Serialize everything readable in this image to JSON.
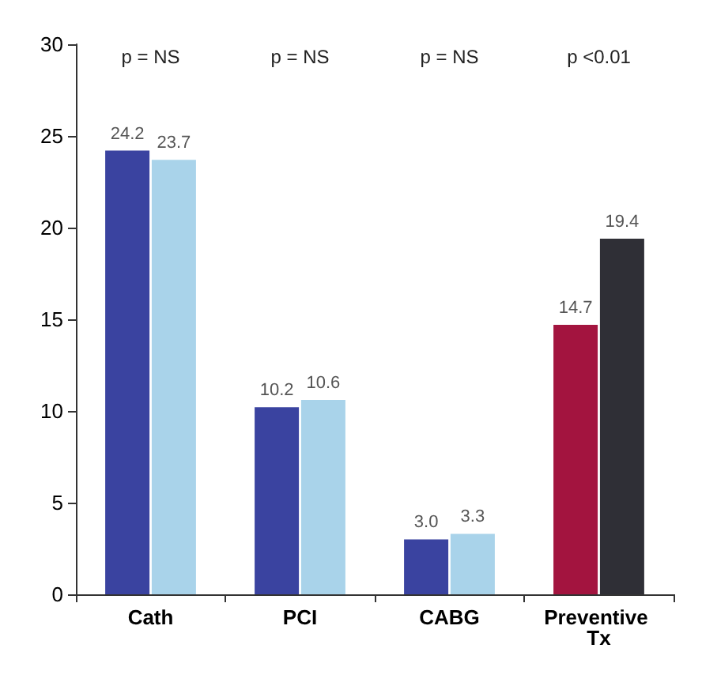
{
  "chart_data": {
    "type": "bar",
    "categories": [
      "Cath",
      "PCI",
      "CABG",
      "Preventive Tx"
    ],
    "series": [
      {
        "colors": [
          "#3a43a0",
          "#3a43a0",
          "#3a43a0",
          "#a3143f"
        ],
        "values": [
          24.2,
          10.2,
          3.0,
          14.7
        ],
        "value_labels": [
          "24.2",
          "10.2",
          "3.0",
          "14.7"
        ]
      },
      {
        "colors": [
          "#a9d3ea",
          "#a9d3ea",
          "#a9d3ea",
          "#2f2f36"
        ],
        "values": [
          23.7,
          10.6,
          3.3,
          19.4
        ],
        "value_labels": [
          "23.7",
          "10.6",
          "3.3",
          "19.4"
        ]
      }
    ],
    "ylim": [
      0,
      30
    ],
    "yticks": [
      0,
      5,
      10,
      15,
      20,
      25,
      30
    ],
    "grid": false,
    "annotations": [
      "p = NS",
      "p = NS",
      "p = NS",
      "p <0.01"
    ]
  }
}
